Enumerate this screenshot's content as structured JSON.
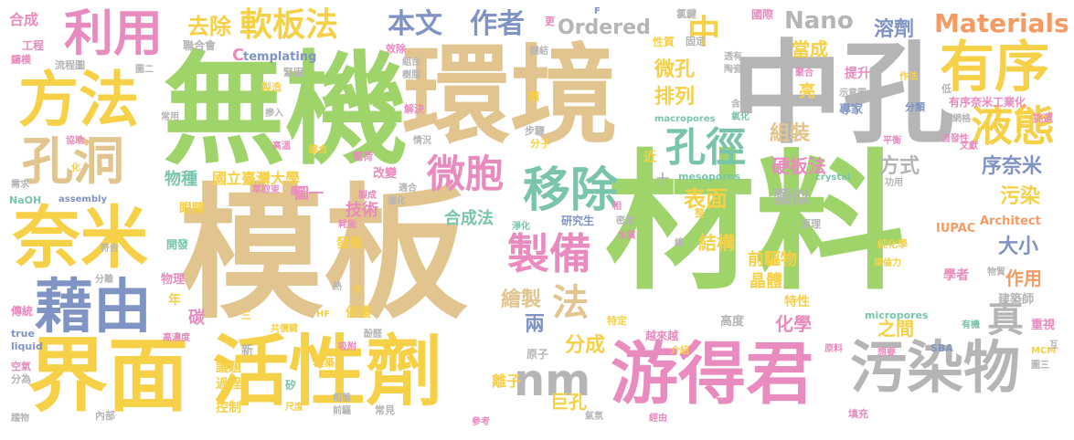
{
  "palette": {
    "green": "#9fd46a",
    "tan": "#e2c48e",
    "yellow": "#f6d046",
    "gray": "#b5b5b5",
    "blue": "#7f93c4",
    "teal": "#79c4ac",
    "pink": "#e98bbf",
    "orange": "#f59a62"
  },
  "words": [
    {
      "text": "材料",
      "color": "green"
    },
    {
      "text": "模板",
      "color": "tan"
    },
    {
      "text": "無機",
      "color": "green"
    },
    {
      "text": "環境",
      "color": "tan"
    },
    {
      "text": "中孔",
      "color": "gray"
    },
    {
      "text": "界面",
      "color": "yellow"
    },
    {
      "text": "活性劑",
      "color": "yellow"
    },
    {
      "text": "游得君",
      "color": "pink"
    },
    {
      "text": "奈米",
      "color": "yellow"
    },
    {
      "text": "藉由",
      "color": "blue"
    },
    {
      "text": "方法",
      "color": "yellow"
    },
    {
      "text": "孔洞",
      "color": "tan"
    },
    {
      "text": "利用",
      "color": "pink"
    },
    {
      "text": "污染物",
      "color": "gray"
    },
    {
      "text": "有序",
      "color": "yellow"
    },
    {
      "text": "移除",
      "color": "teal"
    },
    {
      "text": "製備",
      "color": "pink"
    },
    {
      "text": "nm",
      "color": "gray"
    },
    {
      "text": "液態",
      "color": "yellow"
    },
    {
      "text": "孔徑",
      "color": "teal"
    },
    {
      "text": "微胞",
      "color": "pink"
    },
    {
      "text": "軟板法",
      "color": "yellow"
    },
    {
      "text": "真",
      "color": "gray"
    },
    {
      "text": "法",
      "color": "tan"
    },
    {
      "text": "中",
      "color": "yellow"
    },
    {
      "text": "本文",
      "color": "blue"
    },
    {
      "text": "作者",
      "color": "blue"
    },
    {
      "text": "去除",
      "color": "yellow"
    },
    {
      "text": "Ordered",
      "color": "gray"
    },
    {
      "text": "Nano",
      "color": "gray"
    },
    {
      "text": "Materials",
      "color": "orange"
    },
    {
      "text": "溶劑",
      "color": "blue"
    },
    {
      "text": "當成",
      "color": "yellow"
    },
    {
      "text": "微孔",
      "color": "yellow"
    },
    {
      "text": "排列",
      "color": "yellow"
    },
    {
      "text": "組裝",
      "color": "tan"
    },
    {
      "text": "硬板法",
      "color": "pink"
    },
    {
      "text": "序奈米",
      "color": "blue"
    },
    {
      "text": "污染",
      "color": "yellow"
    },
    {
      "text": "方式",
      "color": "gray"
    },
    {
      "text": "表面",
      "color": "yellow"
    },
    {
      "text": "類似",
      "color": "gray"
    },
    {
      "text": "結構",
      "color": "yellow"
    },
    {
      "text": "大小",
      "color": "blue"
    },
    {
      "text": "作用",
      "color": "orange"
    },
    {
      "text": "分成",
      "color": "yellow"
    },
    {
      "text": "兩",
      "color": "blue"
    },
    {
      "text": "繪製",
      "color": "tan"
    },
    {
      "text": "巨孔",
      "color": "yellow"
    },
    {
      "text": "合成法",
      "color": "teal"
    },
    {
      "text": "物種",
      "color": "teal"
    },
    {
      "text": "技術",
      "color": "pink"
    },
    {
      "text": "國立臺灣大學",
      "color": "yellow"
    },
    {
      "text": "前驅物",
      "color": "yellow"
    },
    {
      "text": "晶體",
      "color": "yellow"
    },
    {
      "text": "化學",
      "color": "pink"
    },
    {
      "text": "之間",
      "color": "yellow"
    },
    {
      "text": "合成",
      "color": "pink"
    },
    {
      "text": "工程",
      "color": "pink"
    },
    {
      "text": "templating",
      "color": "blue"
    },
    {
      "text": "C",
      "color": "pink"
    },
    {
      "text": "提升",
      "color": "pink"
    },
    {
      "text": "亮",
      "color": "yellow"
    },
    {
      "text": "專家",
      "color": "blue"
    },
    {
      "text": "有序奈米工業化",
      "color": "pink"
    },
    {
      "text": "分類",
      "color": "blue"
    },
    {
      "text": "macropores",
      "color": "teal"
    },
    {
      "text": "mesopores",
      "color": "teal"
    },
    {
      "text": "micropores",
      "color": "teal"
    },
    {
      "text": "IUPAC",
      "color": "orange"
    },
    {
      "text": "Architect",
      "color": "orange"
    },
    {
      "text": "學者",
      "color": "pink"
    },
    {
      "text": "建築師",
      "color": "gray"
    },
    {
      "text": "重視",
      "color": "pink"
    },
    {
      "text": "圖一",
      "color": "pink"
    },
    {
      "text": "眼睛",
      "color": "yellow"
    },
    {
      "text": "開發",
      "color": "teal"
    },
    {
      "text": "發展",
      "color": "yellow"
    },
    {
      "text": "碳",
      "color": "pink"
    },
    {
      "text": "物理",
      "color": "pink"
    },
    {
      "text": "保護",
      "color": "yellow"
    },
    {
      "text": "議題",
      "color": "yellow"
    },
    {
      "text": "過程",
      "color": "yellow"
    },
    {
      "text": "控制",
      "color": "yellow"
    },
    {
      "text": "離子",
      "color": "yellow"
    },
    {
      "text": "原子",
      "color": "gray"
    },
    {
      "text": "越來越",
      "color": "pink"
    },
    {
      "text": "特性",
      "color": "yellow"
    },
    {
      "text": "高度",
      "color": "gray"
    },
    {
      "text": "研究生",
      "color": "blue"
    },
    {
      "text": "改變",
      "color": "pink"
    },
    {
      "text": "純化學",
      "color": "yellow"
    },
    {
      "text": "原理",
      "color": "gray"
    },
    {
      "text": "電荷",
      "color": "pink"
    },
    {
      "text": "分子",
      "color": "yellow"
    },
    {
      "text": "步驟",
      "color": "gray"
    },
    {
      "text": "近",
      "color": "yellow"
    },
    {
      "text": "年",
      "color": "yellow"
    },
    {
      "text": "三",
      "color": "yellow"
    },
    {
      "text": "新",
      "color": "gray"
    },
    {
      "text": "傳統",
      "color": "pink"
    },
    {
      "text": "true",
      "color": "blue"
    },
    {
      "text": "liquid",
      "color": "blue"
    },
    {
      "text": "空氣",
      "color": "pink"
    },
    {
      "text": "分為",
      "color": "gray"
    },
    {
      "text": "趨物",
      "color": "gray"
    },
    {
      "text": "NaOH",
      "color": "teal"
    },
    {
      "text": "assembly",
      "color": "blue"
    },
    {
      "text": "crystal",
      "color": "teal"
    },
    {
      "text": "MCM",
      "color": "yellow"
    },
    {
      "text": "SBA",
      "color": "blue"
    },
    {
      "text": "填充",
      "color": "pink"
    },
    {
      "text": "鑄模",
      "color": "pink"
    },
    {
      "text": "流程圖",
      "color": "gray"
    },
    {
      "text": "聯合會",
      "color": "gray"
    },
    {
      "text": "國際",
      "color": "pink"
    },
    {
      "text": "氯鍵",
      "color": "gray"
    },
    {
      "text": "性質",
      "color": "yellow"
    },
    {
      "text": "固定",
      "color": "gray"
    },
    {
      "text": "效除",
      "color": "pink"
    },
    {
      "text": "樹脂",
      "color": "gray"
    },
    {
      "text": "組合",
      "color": "gray"
    },
    {
      "text": "緊固",
      "color": "gray"
    },
    {
      "text": "製造",
      "color": "yellow"
    },
    {
      "text": "解決",
      "color": "pink"
    },
    {
      "text": "類",
      "color": "yellow"
    },
    {
      "text": "示意圖",
      "color": "gray"
    },
    {
      "text": "低",
      "color": "gray"
    },
    {
      "text": "挑選",
      "color": "pink"
    },
    {
      "text": "網格",
      "color": "gray"
    },
    {
      "text": "自發性",
      "color": "pink"
    },
    {
      "text": "平衡",
      "color": "pink"
    },
    {
      "text": "功用",
      "color": "gray"
    },
    {
      "text": "整",
      "color": "yellow"
    },
    {
      "text": "相",
      "color": "pink"
    },
    {
      "text": "密度",
      "color": "gray"
    },
    {
      "text": "水質",
      "color": "pink"
    },
    {
      "text": "淨化",
      "color": "teal"
    },
    {
      "text": "繪",
      "color": "gray"
    },
    {
      "text": "特定",
      "color": "yellow"
    },
    {
      "text": "介紹",
      "color": "yellow"
    },
    {
      "text": "想要",
      "color": "pink"
    },
    {
      "text": "原料",
      "color": "pink"
    },
    {
      "text": "有機",
      "color": "teal"
    },
    {
      "text": "庫倫力",
      "color": "yellow"
    },
    {
      "text": "物質",
      "color": "gray"
    },
    {
      "text": "圖三",
      "color": "gray"
    },
    {
      "text": "互",
      "color": "gray"
    },
    {
      "text": "經由",
      "color": "pink"
    },
    {
      "text": "氣氛",
      "color": "gray"
    },
    {
      "text": "參考",
      "color": "pink"
    },
    {
      "text": "常見",
      "color": "gray"
    },
    {
      "text": "相態",
      "color": "gray"
    },
    {
      "text": "前驅",
      "color": "gray"
    },
    {
      "text": "尺度",
      "color": "yellow"
    },
    {
      "text": "建築出",
      "color": "yellow"
    },
    {
      "text": "吸附",
      "color": "pink"
    },
    {
      "text": "酚醛",
      "color": "gray"
    },
    {
      "text": "共價鍵",
      "color": "yellow"
    },
    {
      "text": "高濃度",
      "color": "pink"
    },
    {
      "text": "HF",
      "color": "yellow"
    },
    {
      "text": "熱",
      "color": "gray"
    },
    {
      "text": "矽",
      "color": "teal"
    },
    {
      "text": "半",
      "color": "yellow"
    },
    {
      "text": "符合",
      "color": "gray"
    },
    {
      "text": "分離",
      "color": "gray"
    },
    {
      "text": "內部",
      "color": "gray"
    },
    {
      "text": "耗能",
      "color": "pink"
    },
    {
      "text": "催化",
      "color": "gray"
    },
    {
      "text": "適合",
      "color": "gray"
    },
    {
      "text": "萃取束",
      "color": "pink"
    },
    {
      "text": "圖",
      "color": "pink"
    },
    {
      "text": "製成",
      "color": "pink"
    },
    {
      "text": "高溫",
      "color": "pink"
    },
    {
      "text": "縮合",
      "color": "yellow"
    },
    {
      "text": "協助",
      "color": "pink"
    },
    {
      "text": "化",
      "color": "yellow"
    },
    {
      "text": "需求",
      "color": "gray"
    },
    {
      "text": "情況",
      "color": "gray"
    },
    {
      "text": "摻入",
      "color": "gray"
    },
    {
      "text": "常用",
      "color": "gray"
    },
    {
      "text": "圖二",
      "color": "gray"
    },
    {
      "text": "鏈結",
      "color": "gray"
    },
    {
      "text": "更",
      "color": "pink"
    },
    {
      "text": "F",
      "color": "blue"
    },
    {
      "text": "透有",
      "color": "gray"
    },
    {
      "text": "陶瓷",
      "color": "gray"
    },
    {
      "text": "聚合",
      "color": "pink"
    },
    {
      "text": "作法",
      "color": "yellow"
    },
    {
      "text": "含矽",
      "color": "gray"
    },
    {
      "text": "氧化",
      "color": "teal"
    },
    {
      "text": "文獻",
      "color": "pink"
    },
    {
      "text": "十",
      "color": "gray"
    }
  ]
}
